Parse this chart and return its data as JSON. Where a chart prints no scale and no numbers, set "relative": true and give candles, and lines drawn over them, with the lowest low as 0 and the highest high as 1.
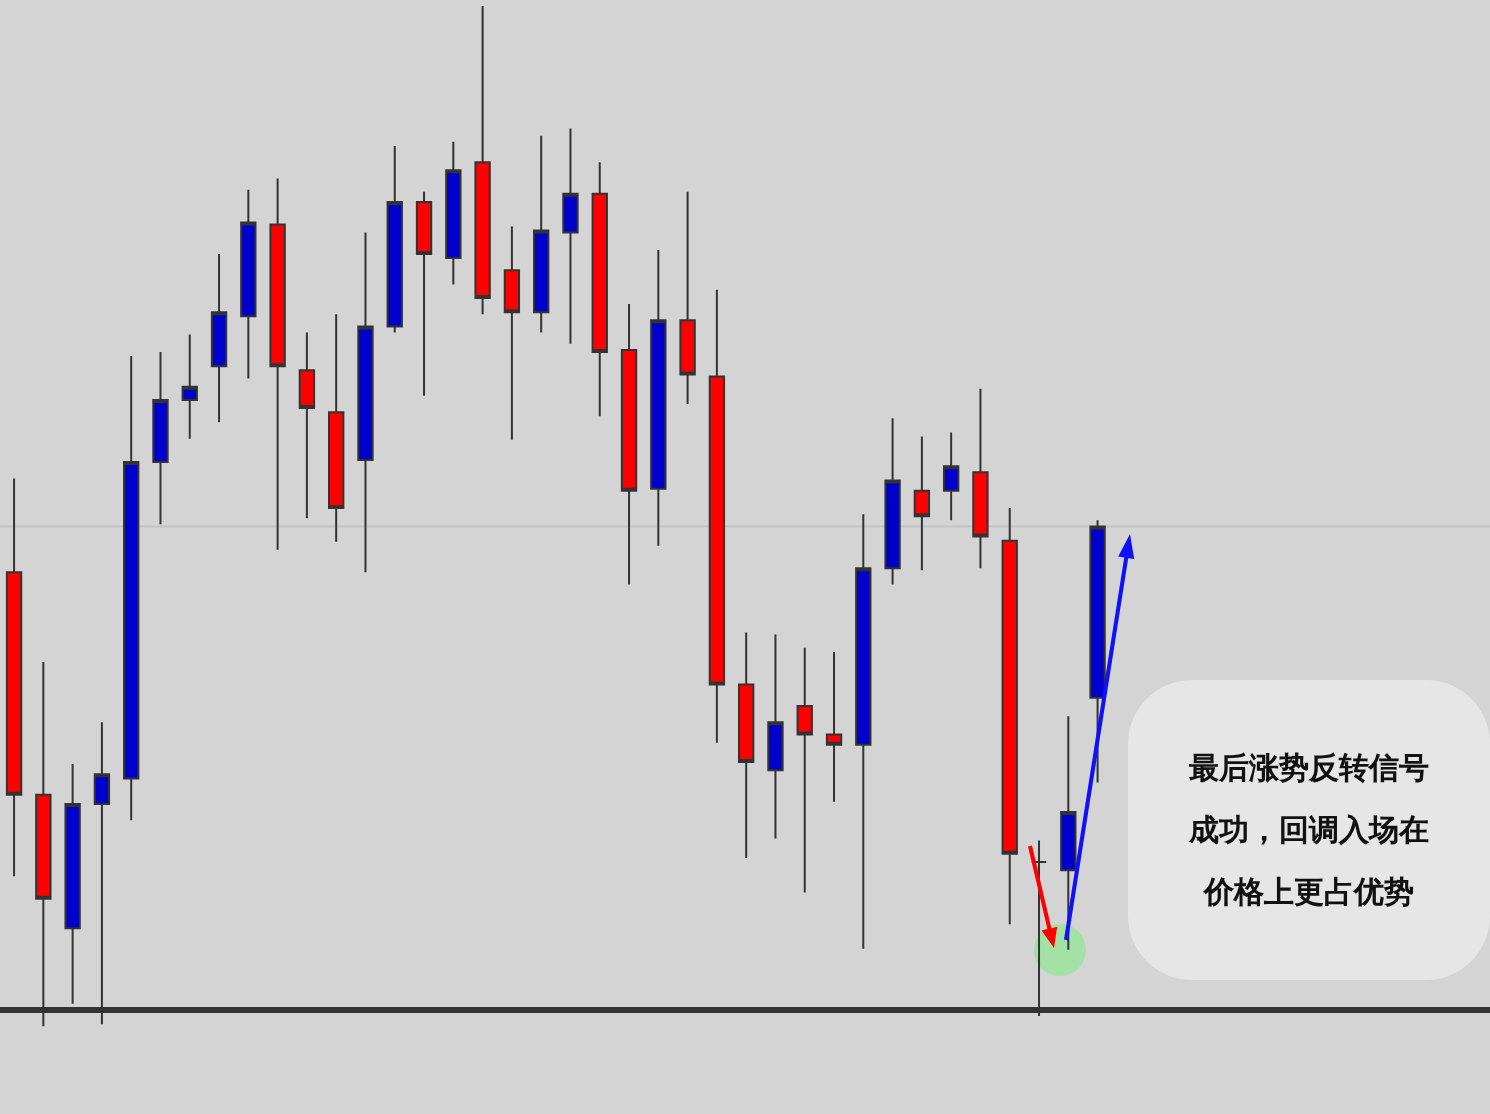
{
  "chart_data": {
    "type": "candlestick",
    "relative": true,
    "categories": [
      null,
      null,
      null,
      null,
      null,
      null,
      null,
      null,
      null,
      null,
      null,
      null,
      null,
      null,
      null,
      null,
      null,
      null,
      null,
      null,
      null,
      null,
      null,
      null,
      null,
      null,
      null,
      null,
      null,
      null,
      null,
      null,
      null,
      null,
      null,
      null,
      null,
      null
    ],
    "ohlc": [
      [
        0.445,
        0.537,
        0.147,
        0.227
      ],
      [
        0.227,
        0.357,
        0,
        0.125
      ],
      [
        0.096,
        0.257,
        0.022,
        0.218
      ],
      [
        0.218,
        0.298,
        0.002,
        0.247
      ],
      [
        0.243,
        0.657,
        0.202,
        0.553
      ],
      [
        0.553,
        0.661,
        0.492,
        0.614
      ],
      [
        0.614,
        0.678,
        0.576,
        0.627
      ],
      [
        0.647,
        0.757,
        0.592,
        0.7
      ],
      [
        0.696,
        0.82,
        0.635,
        0.788
      ],
      [
        0.786,
        0.831,
        0.467,
        0.647
      ],
      [
        0.643,
        0.68,
        0.498,
        0.606
      ],
      [
        0.602,
        0.698,
        0.475,
        0.508
      ],
      [
        0.555,
        0.778,
        0.445,
        0.686
      ],
      [
        0.686,
        0.863,
        0.68,
        0.808
      ],
      [
        0.808,
        0.818,
        0.618,
        0.757
      ],
      [
        0.753,
        0.867,
        0.727,
        0.839
      ],
      [
        0.847,
        1,
        0.698,
        0.714
      ],
      [
        0.741,
        0.784,
        0.575,
        0.7
      ],
      [
        0.7,
        0.873,
        0.68,
        0.78
      ],
      [
        0.778,
        0.88,
        0.669,
        0.816
      ],
      [
        0.816,
        0.847,
        0.598,
        0.661
      ],
      [
        0.663,
        0.708,
        0.433,
        0.525
      ],
      [
        0.527,
        0.761,
        0.471,
        0.692
      ],
      [
        0.692,
        0.818,
        0.61,
        0.639
      ],
      [
        0.637,
        0.722,
        0.278,
        0.335
      ],
      [
        0.335,
        0.386,
        0.165,
        0.259
      ],
      [
        0.251,
        0.384,
        0.184,
        0.298
      ],
      [
        0.314,
        0.371,
        0.131,
        0.286
      ],
      [
        0.286,
        0.367,
        0.22,
        0.276
      ],
      [
        0.276,
        0.502,
        0.076,
        0.449
      ],
      [
        0.449,
        0.596,
        0.433,
        0.535
      ],
      [
        0.525,
        0.578,
        0.447,
        0.5
      ],
      [
        0.525,
        0.582,
        0.496,
        0.549
      ],
      [
        0.543,
        0.625,
        0.449,
        0.48
      ],
      [
        0.476,
        0.508,
        0.1,
        0.169
      ],
      [
        0.161,
        0.182,
        0.01,
        0.161
      ],
      [
        0.153,
        0.304,
        0.075,
        0.21
      ],
      [
        0.322,
        0.496,
        0.239,
        0.49
      ]
    ],
    "colors": [
      "#ff0000",
      "#ff0000",
      "#0000cc",
      "#0000cc",
      "#0000cc",
      "#0000cc",
      "#0000cc",
      "#0000cc",
      "#0000cc",
      "#ff0000",
      "#ff0000",
      "#ff0000",
      "#0000cc",
      "#0000cc",
      "#ff0000",
      "#0000cc",
      "#ff0000",
      "#ff0000",
      "#0000cc",
      "#0000cc",
      "#ff0000",
      "#ff0000",
      "#0000cc",
      "#ff0000",
      "#ff0000",
      "#ff0000",
      "#0000cc",
      "#ff0000",
      "#ff0000",
      "#0000cc",
      "#0000cc",
      "#ff0000",
      "#0000cc",
      "#ff0000",
      "#ff0000",
      "#333333",
      "#0000cc",
      "#0000cc"
    ],
    "ref_lines": [
      {
        "axis": "y",
        "value": 0.016,
        "color": "#333333"
      },
      {
        "axis": "y",
        "value": 0.49,
        "color": "#c4c4c4"
      }
    ],
    "annotations": [
      "最后涨势反转信号成功，回调入场在价格上更占优势"
    ]
  }
}
